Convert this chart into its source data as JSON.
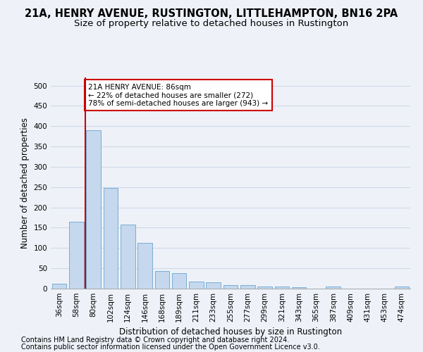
{
  "title_line1": "21A, HENRY AVENUE, RUSTINGTON, LITTLEHAMPTON, BN16 2PA",
  "title_line2": "Size of property relative to detached houses in Rustington",
  "xlabel": "Distribution of detached houses by size in Rustington",
  "ylabel": "Number of detached properties",
  "footnote1": "Contains HM Land Registry data © Crown copyright and database right 2024.",
  "footnote2": "Contains public sector information licensed under the Open Government Licence v3.0.",
  "bar_labels": [
    "36sqm",
    "58sqm",
    "80sqm",
    "102sqm",
    "124sqm",
    "146sqm",
    "168sqm",
    "189sqm",
    "211sqm",
    "233sqm",
    "255sqm",
    "277sqm",
    "299sqm",
    "321sqm",
    "343sqm",
    "365sqm",
    "387sqm",
    "409sqm",
    "431sqm",
    "453sqm",
    "474sqm"
  ],
  "bar_values": [
    13,
    165,
    390,
    248,
    157,
    113,
    43,
    38,
    18,
    15,
    9,
    9,
    6,
    5,
    4,
    0,
    5,
    0,
    0,
    0,
    5
  ],
  "bar_color": "#c5d8ee",
  "bar_edge_color": "#7aadd4",
  "ylim": [
    0,
    520
  ],
  "yticks": [
    0,
    50,
    100,
    150,
    200,
    250,
    300,
    350,
    400,
    450,
    500
  ],
  "vline_x_index": 2,
  "vline_color": "#cc0000",
  "annotation_text": "21A HENRY AVENUE: 86sqm\n← 22% of detached houses are smaller (272)\n78% of semi-detached houses are larger (943) →",
  "annotation_box_color": "#ffffff",
  "annotation_box_edge": "#cc0000",
  "background_color": "#eef2f8",
  "grid_color": "#d0d8e8",
  "title_fontsize": 10.5,
  "subtitle_fontsize": 9.5,
  "axis_label_fontsize": 8.5,
  "tick_fontsize": 7.5,
  "footnote_fontsize": 7
}
